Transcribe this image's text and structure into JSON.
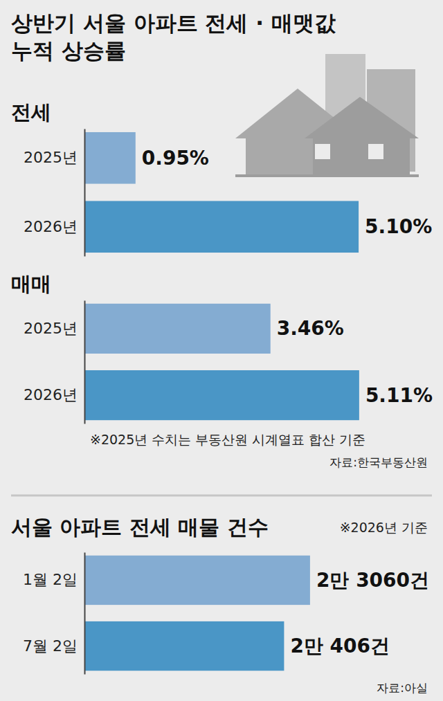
{
  "title": "상반기 서울 아파트 전세 · 매맷값 누적 상승률",
  "chart_data": [
    {
      "type": "bar",
      "title": "전세",
      "orientation": "horizontal",
      "categories": [
        "2025년",
        "2026년"
      ],
      "values": [
        0.95,
        5.1
      ],
      "value_labels": [
        "0.95%",
        "5.10%"
      ],
      "colors": [
        "#84acd2",
        "#4a96c6"
      ],
      "xlim": [
        0,
        6
      ],
      "data_labels": true,
      "tick_labels": "y",
      "grid": false
    },
    {
      "type": "bar",
      "title": "매매",
      "orientation": "horizontal",
      "categories": [
        "2025년",
        "2026년"
      ],
      "values": [
        3.46,
        5.11
      ],
      "value_labels": [
        "3.46%",
        "5.11%"
      ],
      "colors": [
        "#84acd2",
        "#4a96c6"
      ],
      "xlim": [
        0,
        6
      ],
      "data_labels": true,
      "tick_labels": "y",
      "grid": false,
      "annotations": [
        "※2025년 수치는 부동산원 시계열표 합산 기준",
        "자료:한국부동산원"
      ]
    },
    {
      "type": "bar",
      "title": "서울 아파트 전세 매물 건수",
      "subtitle": "※2026년 기준",
      "orientation": "horizontal",
      "categories": [
        "1월 2일",
        "7월 2일"
      ],
      "values": [
        23060,
        20406
      ],
      "value_labels": [
        "2만 3060건",
        "2만 406건"
      ],
      "colors": [
        "#84acd2",
        "#4a96c6"
      ],
      "xlim": [
        0,
        30000
      ],
      "data_labels": true,
      "tick_labels": "y",
      "grid": false,
      "annotations": [
        "자료:아실"
      ]
    }
  ]
}
